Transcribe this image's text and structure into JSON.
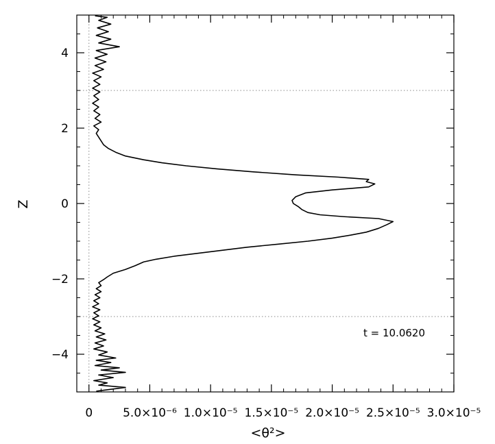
{
  "chart_data": {
    "type": "line",
    "xlabel": "<θ²>",
    "ylabel": "Z",
    "xlim": [
      -1e-06,
      3e-05
    ],
    "ylim": [
      -5,
      5
    ],
    "x_ticks": [
      {
        "value": 0,
        "label": "0"
      },
      {
        "value": 5e-06,
        "label": "5.0×10⁻⁶"
      },
      {
        "value": 1e-05,
        "label": "1.0×10⁻⁵"
      },
      {
        "value": 1.5e-05,
        "label": "1.5×10⁻⁵"
      },
      {
        "value": 2e-05,
        "label": "2.0×10⁻⁵"
      },
      {
        "value": 2.5e-05,
        "label": "2.5×10⁻⁵"
      },
      {
        "value": 3e-05,
        "label": "3.0×10⁻⁵"
      }
    ],
    "y_ticks": [
      {
        "value": -4,
        "label": "−4"
      },
      {
        "value": -2,
        "label": "−2"
      },
      {
        "value": 0,
        "label": "0"
      },
      {
        "value": 2,
        "label": "2"
      },
      {
        "value": 4,
        "label": "4"
      }
    ],
    "reference_lines": [
      {
        "orientation": "horizontal",
        "value": 3,
        "style": "dotted"
      },
      {
        "orientation": "horizontal",
        "value": -3,
        "style": "dotted"
      },
      {
        "orientation": "vertical",
        "value": 0,
        "style": "dotted"
      }
    ],
    "annotation": "t =  10.0620",
    "series": [
      {
        "points": [
          [
            6e-07,
            -4.98
          ],
          [
            3e-06,
            -4.88
          ],
          [
            8e-07,
            -4.82
          ],
          [
            1.5e-06,
            -4.76
          ],
          [
            4e-07,
            -4.7
          ],
          [
            2e-06,
            -4.62
          ],
          [
            8e-07,
            -4.55
          ],
          [
            3e-06,
            -4.48
          ],
          [
            1e-06,
            -4.42
          ],
          [
            2.5e-06,
            -4.36
          ],
          [
            5e-07,
            -4.3
          ],
          [
            1.8e-06,
            -4.22
          ],
          [
            6e-07,
            -4.16
          ],
          [
            2.2e-06,
            -4.1
          ],
          [
            8e-07,
            -4.02
          ],
          [
            1.5e-06,
            -3.94
          ],
          [
            4e-07,
            -3.86
          ],
          [
            1.2e-06,
            -3.78
          ],
          [
            5e-07,
            -3.7
          ],
          [
            1.4e-06,
            -3.62
          ],
          [
            6e-07,
            -3.54
          ],
          [
            1.3e-06,
            -3.46
          ],
          [
            5e-07,
            -3.38
          ],
          [
            1e-06,
            -3.3
          ],
          [
            4e-07,
            -3.22
          ],
          [
            9e-07,
            -3.14
          ],
          [
            3e-07,
            -3.06
          ],
          [
            8e-07,
            -2.98
          ],
          [
            4e-07,
            -2.9
          ],
          [
            9e-07,
            -2.82
          ],
          [
            3e-07,
            -2.74
          ],
          [
            8e-07,
            -2.66
          ],
          [
            4e-07,
            -2.58
          ],
          [
            9e-07,
            -2.5
          ],
          [
            5e-07,
            -2.42
          ],
          [
            1e-06,
            -2.34
          ],
          [
            6e-07,
            -2.26
          ],
          [
            1e-06,
            -2.18
          ],
          [
            8e-07,
            -2.1
          ],
          [
            1.2e-06,
            -2.02
          ],
          [
            1.5e-06,
            -1.95
          ],
          [
            2e-06,
            -1.85
          ],
          [
            3e-06,
            -1.75
          ],
          [
            3.8e-06,
            -1.65
          ],
          [
            4.5e-06,
            -1.55
          ],
          [
            5.5e-06,
            -1.48
          ],
          [
            7e-06,
            -1.4
          ],
          [
            9e-06,
            -1.32
          ],
          [
            1.1e-05,
            -1.24
          ],
          [
            1.3e-05,
            -1.16
          ],
          [
            1.55e-05,
            -1.08
          ],
          [
            1.8e-05,
            -1.0
          ],
          [
            2e-05,
            -0.92
          ],
          [
            2.15e-05,
            -0.84
          ],
          [
            2.28e-05,
            -0.76
          ],
          [
            2.38e-05,
            -0.66
          ],
          [
            2.45e-05,
            -0.56
          ],
          [
            2.5e-05,
            -0.48
          ],
          [
            2.38e-05,
            -0.4
          ],
          [
            2.1e-05,
            -0.35
          ],
          [
            1.9e-05,
            -0.3
          ],
          [
            1.8e-05,
            -0.24
          ],
          [
            1.75e-05,
            -0.16
          ],
          [
            1.72e-05,
            -0.08
          ],
          [
            1.68e-05,
            0.0
          ],
          [
            1.67e-05,
            0.08
          ],
          [
            1.7e-05,
            0.18
          ],
          [
            1.78e-05,
            0.28
          ],
          [
            2e-05,
            0.36
          ],
          [
            2.3e-05,
            0.44
          ],
          [
            2.35e-05,
            0.52
          ],
          [
            2.28e-05,
            0.58
          ],
          [
            2.3e-05,
            0.64
          ],
          [
            2.05e-05,
            0.7
          ],
          [
            1.7e-05,
            0.76
          ],
          [
            1.35e-05,
            0.84
          ],
          [
            1.05e-05,
            0.92
          ],
          [
            8e-06,
            1.0
          ],
          [
            6e-06,
            1.08
          ],
          [
            4.5e-06,
            1.16
          ],
          [
            3e-06,
            1.26
          ],
          [
            2.2e-06,
            1.36
          ],
          [
            1.6e-06,
            1.46
          ],
          [
            1.2e-06,
            1.56
          ],
          [
            1e-06,
            1.66
          ],
          [
            8e-07,
            1.76
          ],
          [
            6e-07,
            1.86
          ],
          [
            8e-07,
            1.96
          ],
          [
            4e-07,
            2.06
          ],
          [
            1e-06,
            2.16
          ],
          [
            5e-07,
            2.26
          ],
          [
            9e-07,
            2.36
          ],
          [
            4e-07,
            2.46
          ],
          [
            8e-07,
            2.56
          ],
          [
            3e-07,
            2.66
          ],
          [
            8e-07,
            2.76
          ],
          [
            4e-07,
            2.86
          ],
          [
            9e-07,
            2.96
          ],
          [
            3e-07,
            3.06
          ],
          [
            9e-07,
            3.16
          ],
          [
            4e-07,
            3.26
          ],
          [
            1e-06,
            3.36
          ],
          [
            3e-07,
            3.46
          ],
          [
            1.2e-06,
            3.56
          ],
          [
            5e-07,
            3.66
          ],
          [
            1.4e-06,
            3.76
          ],
          [
            5e-07,
            3.86
          ],
          [
            1.5e-06,
            3.96
          ],
          [
            6e-07,
            4.06
          ],
          [
            2.5e-06,
            4.16
          ],
          [
            8e-07,
            4.26
          ],
          [
            1.8e-06,
            4.36
          ],
          [
            6e-07,
            4.46
          ],
          [
            1.6e-06,
            4.56
          ],
          [
            7e-07,
            4.66
          ],
          [
            1.8e-06,
            4.76
          ],
          [
            8e-07,
            4.86
          ],
          [
            1.5e-06,
            4.94
          ],
          [
            5e-07,
            4.98
          ]
        ]
      }
    ]
  }
}
